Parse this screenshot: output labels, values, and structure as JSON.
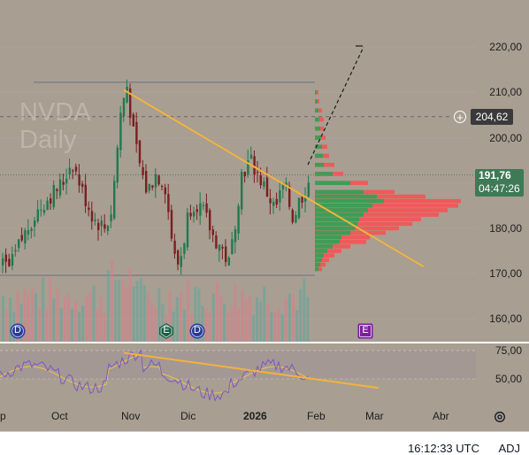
{
  "watermark": {
    "symbol": "NVDA",
    "interval": "Daily"
  },
  "price_axis": {
    "ticks": [
      "220,00",
      "210,00",
      "200,00",
      "190,00",
      "180,00",
      "170,00",
      "160,00"
    ]
  },
  "rsi_axis": {
    "ticks": [
      "75,00",
      "50,00"
    ]
  },
  "time_axis": {
    "ticks": [
      "p",
      "Oct",
      "Nov",
      "Dic",
      "2026",
      "Feb",
      "Mar",
      "Abr"
    ],
    "bold": "2026"
  },
  "badges": {
    "crosshair_price": "204,62",
    "last_price": "191,76",
    "countdown": "04:47:26"
  },
  "markers": {
    "dividend_label": "D",
    "earnings_label": "E"
  },
  "status": {
    "time": "16:12:33 UTC",
    "adj": "ADJ"
  },
  "colors": {
    "background": "#a89e92",
    "up_candle": "#1f7a4e",
    "down_candle": "#7a1f1f",
    "trendline": "#f2b33c",
    "volume_up": "#5aa89a",
    "volume_down": "#e07a86",
    "profile_up": "#3f9d55",
    "profile_down": "#ef5a5a",
    "rsi_line": "#7e57c2"
  },
  "chart_data": {
    "type": "candlestick",
    "symbol": "NVDA",
    "interval": "Daily",
    "ylim": [
      155,
      226
    ],
    "x_labels": [
      "Oct",
      "Nov",
      "Dic",
      "2026",
      "Feb",
      "Mar",
      "Abr"
    ],
    "price_levels": {
      "range_high": 212.2,
      "range_low": 169.6,
      "last_close": 191.76,
      "crosshair": 204.62
    },
    "rsi": {
      "ylim": [
        35,
        80
      ],
      "levels": [
        75,
        50
      ]
    }
  }
}
